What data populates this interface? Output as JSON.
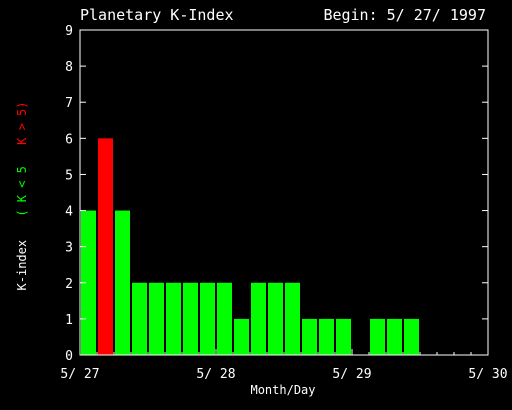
{
  "chart_data": {
    "type": "bar",
    "title": "Planetary K-Index",
    "subtitle": "Begin: 5/ 27/ 1997",
    "xlabel": "Month/Day",
    "ylabel_parts": [
      "K-index",
      "( K < 5",
      "K > 5)"
    ],
    "ylim": [
      0,
      9
    ],
    "xlim_days": [
      0,
      3
    ],
    "y_ticks": [
      "0",
      "1",
      "2",
      "3",
      "4",
      "5",
      "6",
      "7",
      "8",
      "9"
    ],
    "x_ticks": [
      "5/ 27",
      "5/ 28",
      "5/ 29",
      "5/ 30"
    ],
    "interval_hours": 3,
    "values": [
      4,
      6,
      4,
      2,
      2,
      2,
      2,
      2,
      2,
      1,
      2,
      2,
      2,
      1,
      1,
      1,
      0,
      1,
      1,
      1,
      0,
      0,
      0,
      0
    ],
    "colors": {
      "low": "#00ff00",
      "high": "#ff0000",
      "axes": "#ffffff",
      "background": "#000000"
    },
    "threshold": 5
  }
}
